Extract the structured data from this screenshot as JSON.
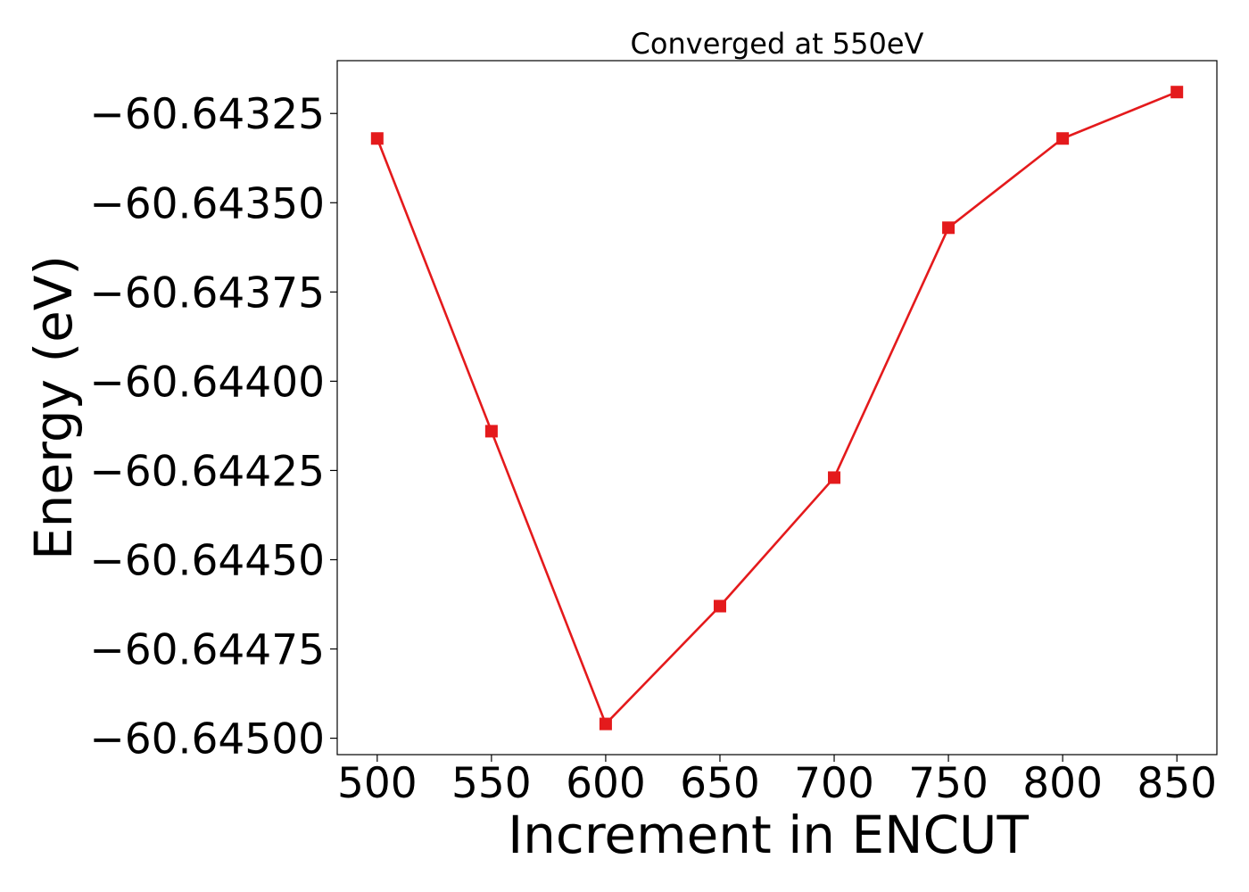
{
  "chart_data": {
    "type": "line",
    "title": "Converged at 550eV",
    "xlabel": "Increment in ENCUT",
    "ylabel": "Energy (eV)",
    "x": [
      500,
      550,
      600,
      650,
      700,
      750,
      800,
      850
    ],
    "series": [
      {
        "values": [
          -60.64332,
          -60.64414,
          -60.64496,
          -60.64463,
          -60.64427,
          -60.64357,
          -60.64332,
          -60.64319
        ],
        "color": "#e41a1c",
        "marker": "square"
      }
    ],
    "xticks": [
      500,
      550,
      600,
      650,
      700,
      750,
      800,
      850
    ],
    "xtick_labels": [
      "500",
      "550",
      "600",
      "650",
      "700",
      "750",
      "800",
      "850"
    ],
    "yticks": [
      -60.64325,
      -60.6435,
      -60.64375,
      -60.644,
      -60.64425,
      -60.6445,
      -60.64475,
      -60.645
    ],
    "ytick_labels": [
      "−60.64325",
      "−60.64350",
      "−60.64375",
      "−60.64400",
      "−60.64425",
      "−60.64450",
      "−60.64475",
      "−60.64500"
    ],
    "xlim": [
      482.5,
      867.5
    ],
    "ylim": [
      -60.645046,
      -60.643102
    ],
    "grid": false,
    "legend": "none"
  }
}
